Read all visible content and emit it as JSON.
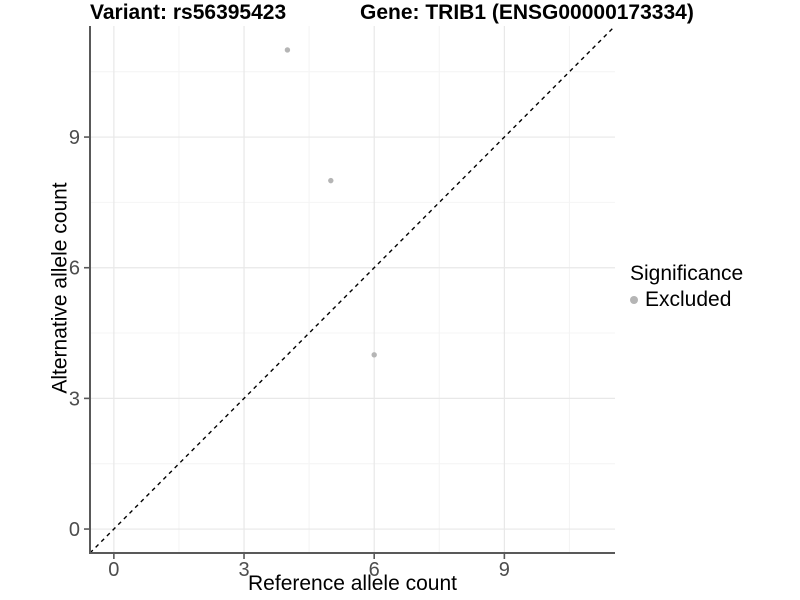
{
  "chart_data": {
    "type": "scatter",
    "titles": {
      "left": "Variant: rs56395423",
      "right": "Gene: TRIB1 (ENSG00000173334)"
    },
    "xlabel": "Reference allele count",
    "ylabel": "Alternative allele count",
    "xlim": [
      -0.55,
      11.55
    ],
    "ylim": [
      -0.55,
      11.55
    ],
    "x_ticks": [
      0,
      3,
      6,
      9
    ],
    "y_ticks": [
      0,
      3,
      6,
      9
    ],
    "x_minor_ticks": [
      1.5,
      4.5,
      7.5,
      10.5
    ],
    "y_minor_ticks": [
      1.5,
      4.5,
      7.5,
      10.5
    ],
    "grid": "major and minor gridlines, light gray, on white panel",
    "series": [
      {
        "name": "Excluded",
        "color": "#b5b5b5",
        "points": [
          {
            "x": 4,
            "y": 11
          },
          {
            "x": 5,
            "y": 8
          },
          {
            "x": 6,
            "y": 4
          }
        ]
      }
    ],
    "reference_line": {
      "type": "identity y = x",
      "style": "dashed",
      "color": "#000000"
    },
    "legend": {
      "title": "Significance",
      "position": "right",
      "entries": [
        {
          "label": "Excluded",
          "color": "#b5b5b5"
        }
      ]
    },
    "colors": {
      "grid_major": "#e8e8e8",
      "grid_minor": "#f4f4f4",
      "axis_line": "#595959",
      "tick_text": "#4d4d4d",
      "title_text": "#000000",
      "background": "#ffffff"
    }
  }
}
